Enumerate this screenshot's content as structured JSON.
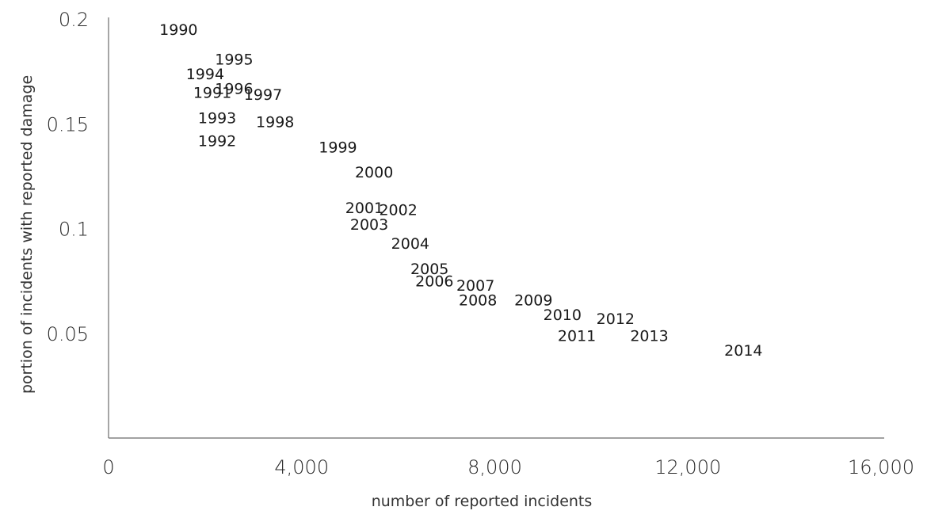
{
  "chart_data": {
    "type": "scatter",
    "title": "",
    "xlabel": "number of reported incidents",
    "ylabel": "portion of incidents with reported damage",
    "xlim": [
      0,
      16000
    ],
    "ylim": [
      0,
      0.2
    ],
    "xticks": [
      0,
      4000,
      8000,
      12000,
      16000
    ],
    "xtick_labels": [
      "0",
      "4,000",
      "8,000",
      "12,000",
      "16,000"
    ],
    "yticks": [
      0.05,
      0.1,
      0.15,
      0.2
    ],
    "ytick_labels": [
      "0.05",
      "0.1",
      "0.15",
      "0.2"
    ],
    "grid": false,
    "points": [
      {
        "label": "1990",
        "x": 1450,
        "y": 0.195
      },
      {
        "label": "1991",
        "x": 2150,
        "y": 0.165
      },
      {
        "label": "1992",
        "x": 2250,
        "y": 0.142
      },
      {
        "label": "1993",
        "x": 2250,
        "y": 0.153
      },
      {
        "label": "1994",
        "x": 2000,
        "y": 0.174
      },
      {
        "label": "1995",
        "x": 2600,
        "y": 0.181
      },
      {
        "label": "1996",
        "x": 2600,
        "y": 0.167
      },
      {
        "label": "1997",
        "x": 3200,
        "y": 0.164
      },
      {
        "label": "1998",
        "x": 3450,
        "y": 0.151
      },
      {
        "label": "1999",
        "x": 4750,
        "y": 0.139
      },
      {
        "label": "2000",
        "x": 5500,
        "y": 0.127
      },
      {
        "label": "2001",
        "x": 5300,
        "y": 0.11
      },
      {
        "label": "2002",
        "x": 6000,
        "y": 0.109
      },
      {
        "label": "2003",
        "x": 5400,
        "y": 0.102
      },
      {
        "label": "2004",
        "x": 6250,
        "y": 0.093
      },
      {
        "label": "2005",
        "x": 6650,
        "y": 0.081
      },
      {
        "label": "2006",
        "x": 6750,
        "y": 0.075
      },
      {
        "label": "2007",
        "x": 7600,
        "y": 0.073
      },
      {
        "label": "2008",
        "x": 7650,
        "y": 0.066
      },
      {
        "label": "2009",
        "x": 8800,
        "y": 0.066
      },
      {
        "label": "2010",
        "x": 9400,
        "y": 0.059
      },
      {
        "label": "2011",
        "x": 9700,
        "y": 0.049
      },
      {
        "label": "2012",
        "x": 10500,
        "y": 0.057
      },
      {
        "label": "2013",
        "x": 11200,
        "y": 0.049
      },
      {
        "label": "2014",
        "x": 13150,
        "y": 0.042
      }
    ]
  }
}
